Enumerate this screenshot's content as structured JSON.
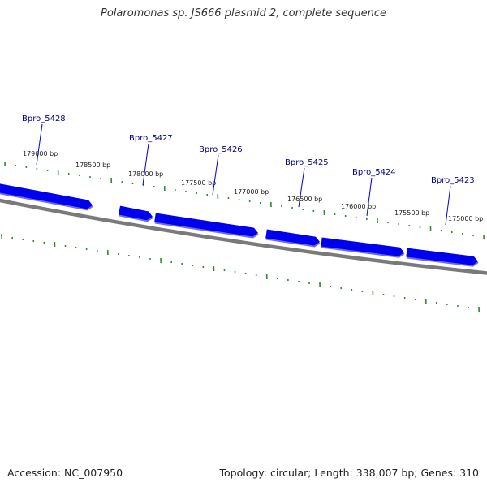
{
  "title": "Polaromonas sp. JS666 plasmid 2, complete sequence",
  "footer": {
    "accession": "Accession: NC_007950",
    "summary": "Topology: circular; Length: 338,007 bp; Genes: 310"
  },
  "colors": {
    "gene": "#0000ee",
    "gene_shadow": "#6a6af0",
    "backbone": "#7a7a7a",
    "tick": "#2e8b2e",
    "gene_label": "#00008b",
    "leader": "#0000cd"
  },
  "ticks": {
    "labels": [
      "179000 bp",
      "178500 bp",
      "178000 bp",
      "177500 bp",
      "177000 bp",
      "176500 bp",
      "176000 bp",
      "175500 bp",
      "175000 bp"
    ]
  },
  "genes": [
    {
      "name": "Bpro_5428"
    },
    {
      "name": "Bpro_5427"
    },
    {
      "name": "Bpro_5426"
    },
    {
      "name": "Bpro_5425"
    },
    {
      "name": "Bpro_5424"
    },
    {
      "name": "Bpro_5423"
    }
  ]
}
